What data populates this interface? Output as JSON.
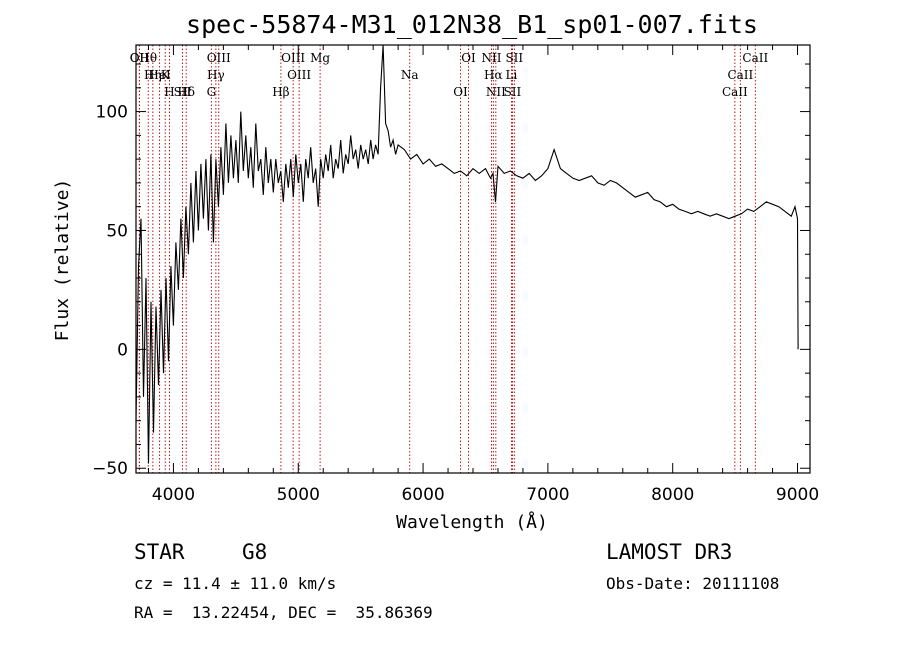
{
  "chart_data": {
    "type": "line",
    "title": "spec-55874-M31_012N38_B1_sp01-007.fits",
    "xlabel": "Wavelength (Å)",
    "ylabel": "Flux (relative)",
    "xlim": [
      3700,
      9100
    ],
    "ylim": [
      -52,
      128
    ],
    "xticks": [
      4000,
      5000,
      6000,
      7000,
      8000,
      9000
    ],
    "yticks": [
      -50,
      0,
      50,
      100
    ],
    "grid": false,
    "series": [
      {
        "name": "spectrum",
        "x": [
          3700,
          3720,
          3740,
          3760,
          3780,
          3800,
          3820,
          3840,
          3860,
          3880,
          3900,
          3920,
          3940,
          3960,
          3980,
          4000,
          4020,
          4040,
          4060,
          4080,
          4100,
          4120,
          4140,
          4160,
          4180,
          4200,
          4220,
          4240,
          4260,
          4280,
          4300,
          4320,
          4340,
          4360,
          4380,
          4400,
          4420,
          4440,
          4460,
          4480,
          4500,
          4520,
          4540,
          4560,
          4580,
          4600,
          4620,
          4640,
          4660,
          4680,
          4700,
          4720,
          4740,
          4760,
          4780,
          4800,
          4820,
          4840,
          4860,
          4880,
          4900,
          4920,
          4940,
          4960,
          4980,
          5000,
          5020,
          5040,
          5060,
          5080,
          5100,
          5120,
          5140,
          5160,
          5180,
          5200,
          5220,
          5240,
          5260,
          5280,
          5300,
          5320,
          5340,
          5360,
          5380,
          5400,
          5420,
          5440,
          5460,
          5480,
          5500,
          5520,
          5540,
          5560,
          5580,
          5600,
          5620,
          5640,
          5660,
          5680,
          5700,
          5720,
          5740,
          5760,
          5780,
          5800,
          5850,
          5900,
          5950,
          6000,
          6050,
          6100,
          6150,
          6200,
          6250,
          6300,
          6350,
          6400,
          6450,
          6500,
          6540,
          6560,
          6580,
          6600,
          6650,
          6700,
          6750,
          6800,
          6850,
          6900,
          6950,
          7000,
          7050,
          7100,
          7150,
          7200,
          7250,
          7300,
          7350,
          7400,
          7450,
          7500,
          7550,
          7600,
          7650,
          7700,
          7750,
          7800,
          7850,
          7900,
          7950,
          8000,
          8050,
          8100,
          8150,
          8200,
          8250,
          8300,
          8350,
          8400,
          8450,
          8500,
          8550,
          8600,
          8650,
          8700,
          8750,
          8800,
          8850,
          8900,
          8950,
          8980,
          9000,
          9005
        ],
        "values": [
          -30,
          35,
          55,
          -20,
          30,
          -48,
          20,
          -35,
          18,
          -15,
          25,
          -10,
          30,
          -5,
          35,
          10,
          45,
          25,
          55,
          30,
          60,
          40,
          70,
          45,
          75,
          50,
          78,
          55,
          80,
          50,
          82,
          45,
          80,
          60,
          85,
          65,
          95,
          70,
          90,
          72,
          88,
          70,
          100,
          75,
          90,
          72,
          85,
          68,
          95,
          75,
          80,
          65,
          85,
          70,
          80,
          66,
          80,
          70,
          75,
          62,
          78,
          68,
          80,
          64,
          82,
          70,
          78,
          62,
          80,
          72,
          85,
          70,
          76,
          60,
          80,
          72,
          82,
          75,
          86,
          72,
          80,
          76,
          88,
          74,
          82,
          78,
          90,
          80,
          84,
          76,
          86,
          80,
          84,
          78,
          88,
          80,
          86,
          82,
          110,
          130,
          95,
          92,
          85,
          88,
          82,
          86,
          84,
          80,
          82,
          78,
          80,
          77,
          78,
          76,
          74,
          75,
          73,
          76,
          74,
          76,
          72,
          74,
          62,
          77,
          74,
          75,
          73,
          72,
          74,
          71,
          73,
          76,
          84,
          76,
          74,
          72,
          71,
          72,
          73,
          70,
          69,
          71,
          70,
          68,
          66,
          64,
          65,
          66,
          63,
          62,
          60,
          61,
          59,
          58,
          57,
          58,
          57,
          56,
          57,
          56,
          55,
          56,
          57,
          59,
          58,
          60,
          62,
          61,
          60,
          58,
          56,
          60,
          55,
          0
        ]
      }
    ],
    "line_markers": [
      {
        "label": "Hθ",
        "x": 3798
      },
      {
        "label": "K",
        "x": 3934
      },
      {
        "label": "Hδ",
        "x": 4102
      },
      {
        "label": "OII",
        "x": 3727
      },
      {
        "label": "HeI",
        "x": 3889
      },
      {
        "label": "SII",
        "x": 4072
      },
      {
        "label": "OII",
        "x": 3727
      },
      {
        "label": "Hη",
        "x": 3835
      },
      {
        "label": "H",
        "x": 3968
      },
      {
        "label": "OIII",
        "x": 4363
      },
      {
        "label": "Hγ",
        "x": 4340
      },
      {
        "label": "G",
        "x": 4304
      },
      {
        "label": "OIII",
        "x": 4959
      },
      {
        "label": "OIII",
        "x": 5007
      },
      {
        "label": "Hβ",
        "x": 4861
      },
      {
        "label": "Mg",
        "x": 5175
      },
      {
        "label": "Na",
        "x": 5893
      },
      {
        "label": "OI",
        "x": 6300
      },
      {
        "label": "OI",
        "x": 6364
      },
      {
        "label": "Hα",
        "x": 6563
      },
      {
        "label": "SII",
        "x": 6716
      },
      {
        "label": "NII",
        "x": 6548
      },
      {
        "label": "Li",
        "x": 6708
      },
      {
        "label": "NII",
        "x": 6583
      },
      {
        "label": "SII",
        "x": 6731
      },
      {
        "label": "CaII",
        "x": 8542
      },
      {
        "label": "CaII",
        "x": 8498
      },
      {
        "label": "CaII",
        "x": 8662
      }
    ]
  },
  "info": {
    "class": "STAR",
    "subclass": "G8",
    "survey": "LAMOST DR3",
    "cz": "cz = 11.4 ± 11.0 km/s",
    "obs_date": "Obs-Date: 20111108",
    "radec": "RA =  13.22454, DEC =  35.86369"
  }
}
